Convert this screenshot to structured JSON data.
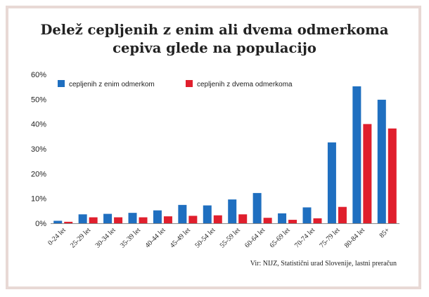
{
  "chart_data": {
    "type": "bar",
    "title_lines": [
      "Delež cepljenih z enim ali dvema odmerkoma",
      "cepiva glede na populacijo"
    ],
    "categories": [
      "0-24 let",
      "25-29 let",
      "30-34 let",
      "35-39 let",
      "40-44 let",
      "45-49 let",
      "50-54 let",
      "55-59 let",
      "60-64 let",
      "65-69 let",
      "70-74 let",
      "75-79 let",
      "80-84 let",
      "85+"
    ],
    "series": [
      {
        "name": "cepljenih z enim odmerkom",
        "color": "#1f6fc0",
        "values": [
          1.0,
          3.6,
          3.8,
          4.2,
          5.2,
          7.4,
          7.2,
          9.6,
          12.2,
          4.0,
          6.4,
          32.6,
          55.2,
          49.8
        ]
      },
      {
        "name": "cepljenih z dvema odmerkoma",
        "color": "#e01f2d",
        "values": [
          0.6,
          2.4,
          2.4,
          2.4,
          2.8,
          3.0,
          3.2,
          3.6,
          2.2,
          1.4,
          2.0,
          6.6,
          40.0,
          38.2
        ]
      }
    ],
    "yticks": [
      "0%",
      "10%",
      "20%",
      "30%",
      "40%",
      "50%",
      "60%"
    ],
    "ylim": [
      0,
      60
    ],
    "grid": false,
    "legend_position": "top-left"
  },
  "source": "Vir: NIJZ, Statistični urad Slovenije, lastni preračun"
}
